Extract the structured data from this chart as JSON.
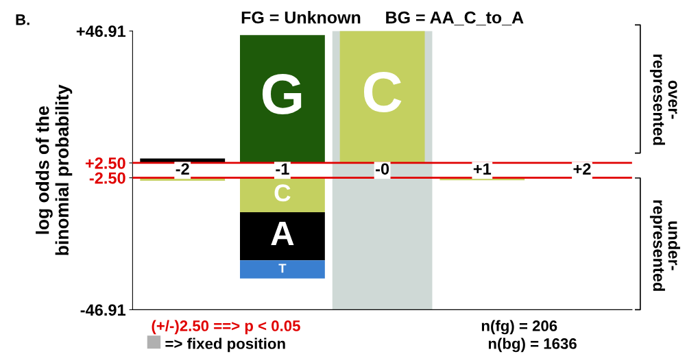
{
  "chart_data": {
    "type": "bar",
    "title": "FG = Unknown     BG = AA_C_to_A",
    "ylabel": "log odds of the\nbinomial probability",
    "categories": [
      "-2",
      "-1",
      "-0",
      "+1",
      "+2"
    ],
    "ylim": [
      -46.91,
      46.91
    ],
    "yticks": [
      {
        "value": 46.91,
        "label": "+46.91"
      },
      {
        "value": 2.5,
        "label": "+2.50"
      },
      {
        "value": -2.5,
        "label": "-2.50"
      },
      {
        "value": -46.91,
        "label": "-46.91"
      }
    ],
    "series": [
      {
        "name": "G",
        "color": "#1e5a0a",
        "values": [
          null,
          43.0,
          null,
          null,
          null
        ],
        "base": [
          null,
          2.5,
          null,
          null,
          null
        ]
      },
      {
        "name": "C",
        "color": "#c4d060",
        "values": [
          -1.0,
          -11.6,
          44.4,
          -0.8,
          null
        ],
        "base": [
          -2.5,
          -2.5,
          2.5,
          -2.5,
          null
        ]
      },
      {
        "name": "A",
        "color": "#000000",
        "values": [
          1.5,
          -16.2,
          null,
          null,
          null
        ],
        "base": [
          2.5,
          -14.1,
          null,
          null,
          null
        ]
      },
      {
        "name": "T",
        "color": "#3a7fd0",
        "values": [
          null,
          -6.1,
          null,
          null,
          null
        ],
        "base": [
          null,
          -30.3,
          null,
          null,
          null
        ]
      }
    ],
    "ref_lines": [
      {
        "axis": "y",
        "value": 2.5,
        "color": "#e00000"
      },
      {
        "axis": "y",
        "value": -2.5,
        "color": "#e00000"
      }
    ],
    "bands": [
      {
        "axis": "x",
        "from": "-0",
        "to": "-0",
        "color": "#cfd9d6"
      }
    ],
    "grid": false,
    "legend": false,
    "annotations": [
      "B.",
      "over-\nrepresented",
      "under-\nrepresented",
      "(+/-)2.50 ==> p < 0.05",
      "n(fg) = 206",
      "=> fixed position",
      "n(bg) = 1636"
    ]
  }
}
